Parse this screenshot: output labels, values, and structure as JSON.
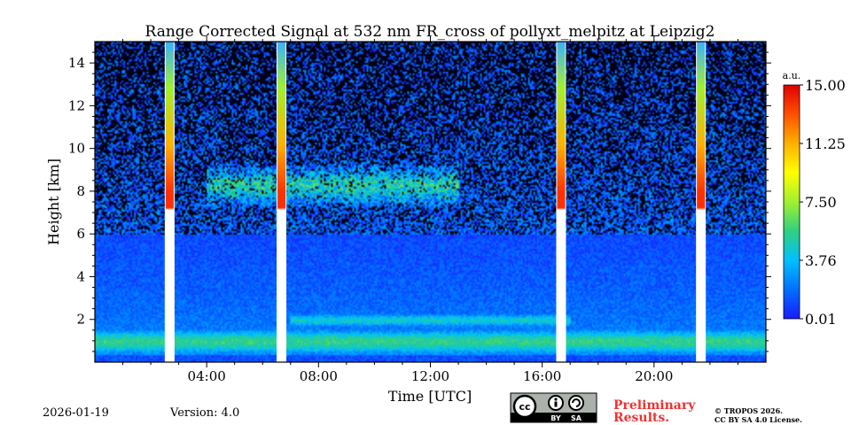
{
  "chart_data": {
    "type": "heatmap",
    "title": "Range Corrected Signal at 532 nm FR_cross of pollyxt_melpitz at Leipzig2",
    "xlabel": "Time [UTC]",
    "ylabel": "Height [km]",
    "xlim_hours": [
      0,
      24
    ],
    "ylim_km": [
      0,
      15
    ],
    "x_ticks": [
      {
        "hour": 4,
        "label": "04:00"
      },
      {
        "hour": 8,
        "label": "08:00"
      },
      {
        "hour": 12,
        "label": "12:00"
      },
      {
        "hour": 16,
        "label": "16:00"
      },
      {
        "hour": 20,
        "label": "20:00"
      }
    ],
    "y_ticks": [
      {
        "km": 2,
        "label": "2"
      },
      {
        "km": 4,
        "label": "4"
      },
      {
        "km": 6,
        "label": "6"
      },
      {
        "km": 8,
        "label": "8"
      },
      {
        "km": 10,
        "label": "10"
      },
      {
        "km": 12,
        "label": "12"
      },
      {
        "km": 14,
        "label": "14"
      }
    ],
    "colorbar": {
      "unit": "a.u.",
      "range": [
        0.01,
        15.0
      ],
      "ticks": [
        {
          "value": 0.01,
          "label": "0.01"
        },
        {
          "value": 3.76,
          "label": "3.76"
        },
        {
          "value": 7.5,
          "label": "7.50"
        },
        {
          "value": 11.25,
          "label": "11.25"
        },
        {
          "value": 15.0,
          "label": "15.00"
        }
      ],
      "colormap": [
        "#1a1aff",
        "#0070ff",
        "#00c0ff",
        "#30d080",
        "#a0f030",
        "#ffff00",
        "#ffb000",
        "#ff5000",
        "#e00000"
      ]
    },
    "calibration_gaps_hours": [
      {
        "start": 2.5,
        "end": 2.85
      },
      {
        "start": 6.5,
        "end": 6.85
      },
      {
        "start": 16.5,
        "end": 16.85
      },
      {
        "start": 21.5,
        "end": 21.85
      }
    ],
    "layers": [
      {
        "name": "boundary-layer",
        "start_hour": 0,
        "end_hour": 24,
        "base_km": 0.3,
        "top_km": 1.6,
        "signal": 5.5
      },
      {
        "name": "elevated-aerosol",
        "start_hour": 7,
        "end_hour": 17,
        "base_km": 1.6,
        "top_km": 2.3,
        "signal": 4.5
      },
      {
        "name": "cirrus-layer",
        "start_hour": 4,
        "end_hour": 13,
        "base_km": 7.3,
        "top_km": 9.2,
        "signal": 4.8
      }
    ]
  },
  "footer": {
    "date": "2026-01-19",
    "version": "Version: 4.0",
    "license_badge_text": "cc",
    "license_badge_by": "BY",
    "license_badge_sa": "SA",
    "preliminary_line1": "Preliminary",
    "preliminary_line2": "Results.",
    "copyright_line1": "© TROPOS 2026.",
    "copyright_line2": "CC BY SA 4.0 License."
  }
}
